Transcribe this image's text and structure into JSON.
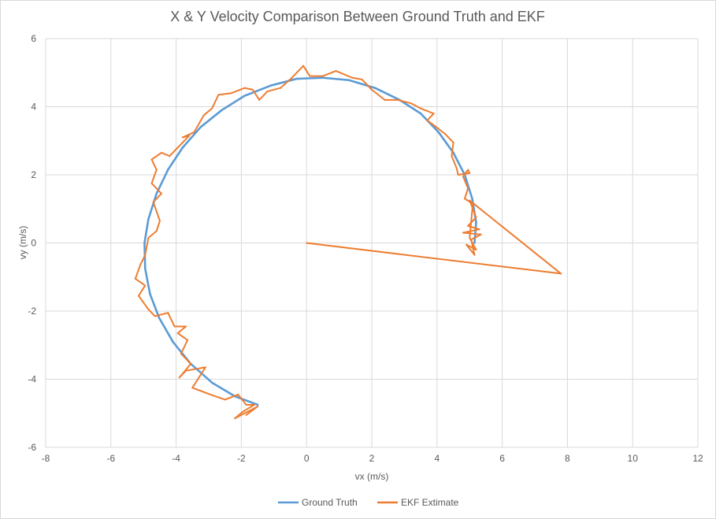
{
  "chart_data": {
    "type": "scatter",
    "title": "X & Y Velocity Comparison Between Ground Truth and EKF",
    "xlabel": "vx (m/s)",
    "ylabel": "vy (m/s)",
    "xlim": [
      -8,
      12
    ],
    "ylim": [
      -6,
      6
    ],
    "x_ticks": [
      "-8",
      "-6",
      "-4",
      "-2",
      "0",
      "2",
      "4",
      "6",
      "8",
      "10",
      "12"
    ],
    "y_ticks": [
      "6",
      "4",
      "2",
      "0",
      "-2",
      "-4",
      "-6"
    ],
    "grid": true,
    "legend_position": "bottom",
    "series": [
      {
        "name": "Ground Truth",
        "color": "#5b9bd5",
        "points": [
          [
            5.15,
            0.0
          ],
          [
            5.2,
            0.6
          ],
          [
            5.08,
            1.3
          ],
          [
            4.85,
            2.0
          ],
          [
            4.5,
            2.65
          ],
          [
            4.05,
            3.25
          ],
          [
            3.5,
            3.8
          ],
          [
            2.85,
            4.2
          ],
          [
            2.1,
            4.55
          ],
          [
            1.3,
            4.78
          ],
          [
            0.5,
            4.85
          ],
          [
            -0.3,
            4.82
          ],
          [
            -1.1,
            4.62
          ],
          [
            -1.9,
            4.32
          ],
          [
            -2.6,
            3.9
          ],
          [
            -3.25,
            3.4
          ],
          [
            -3.8,
            2.8
          ],
          [
            -4.25,
            2.15
          ],
          [
            -4.6,
            1.45
          ],
          [
            -4.85,
            0.7
          ],
          [
            -4.97,
            0.0
          ],
          [
            -4.95,
            -0.75
          ],
          [
            -4.8,
            -1.5
          ],
          [
            -4.52,
            -2.2
          ],
          [
            -4.1,
            -2.9
          ],
          [
            -3.55,
            -3.55
          ],
          [
            -2.9,
            -4.1
          ],
          [
            -2.2,
            -4.5
          ],
          [
            -1.5,
            -4.75
          ]
        ]
      },
      {
        "name": "EKF Extimate",
        "color": "#ed7d31",
        "points": [
          [
            0.0,
            0.0
          ],
          [
            7.8,
            -0.9
          ],
          [
            5.0,
            1.25
          ],
          [
            5.2,
            0.75
          ],
          [
            4.95,
            0.5
          ],
          [
            5.3,
            0.4
          ],
          [
            4.8,
            0.3
          ],
          [
            5.35,
            0.25
          ],
          [
            5.05,
            0.1
          ],
          [
            5.15,
            -0.35
          ],
          [
            4.9,
            -0.05
          ],
          [
            5.2,
            -0.2
          ],
          [
            5.0,
            0.15
          ],
          [
            5.1,
            1.15
          ],
          [
            4.85,
            1.3
          ],
          [
            4.95,
            1.6
          ],
          [
            4.8,
            1.95
          ],
          [
            4.95,
            2.15
          ],
          [
            5.0,
            2.05
          ],
          [
            4.65,
            2.0
          ],
          [
            4.6,
            2.2
          ],
          [
            4.45,
            2.55
          ],
          [
            4.5,
            2.95
          ],
          [
            4.25,
            3.2
          ],
          [
            4.05,
            3.35
          ],
          [
            3.7,
            3.6
          ],
          [
            3.9,
            3.8
          ],
          [
            3.5,
            3.95
          ],
          [
            3.2,
            4.1
          ],
          [
            2.8,
            4.2
          ],
          [
            2.4,
            4.2
          ],
          [
            2.0,
            4.5
          ],
          [
            1.7,
            4.8
          ],
          [
            1.4,
            4.85
          ],
          [
            0.9,
            5.05
          ],
          [
            0.5,
            4.9
          ],
          [
            0.1,
            4.9
          ],
          [
            -0.1,
            5.2
          ],
          [
            -0.45,
            4.85
          ],
          [
            -0.8,
            4.55
          ],
          [
            -1.2,
            4.45
          ],
          [
            -1.45,
            4.2
          ],
          [
            -1.65,
            4.5
          ],
          [
            -1.9,
            4.55
          ],
          [
            -2.3,
            4.4
          ],
          [
            -2.7,
            4.35
          ],
          [
            -2.9,
            3.95
          ],
          [
            -3.15,
            3.75
          ],
          [
            -3.45,
            3.25
          ],
          [
            -3.8,
            3.1
          ],
          [
            -3.6,
            3.15
          ],
          [
            -4.0,
            2.75
          ],
          [
            -4.2,
            2.55
          ],
          [
            -4.45,
            2.65
          ],
          [
            -4.75,
            2.45
          ],
          [
            -4.6,
            2.15
          ],
          [
            -4.75,
            1.75
          ],
          [
            -4.45,
            1.45
          ],
          [
            -4.7,
            1.2
          ],
          [
            -4.5,
            0.65
          ],
          [
            -4.6,
            0.35
          ],
          [
            -4.85,
            0.15
          ],
          [
            -4.95,
            -0.35
          ],
          [
            -5.1,
            -0.65
          ],
          [
            -5.25,
            -1.05
          ],
          [
            -4.95,
            -1.25
          ],
          [
            -5.15,
            -1.55
          ],
          [
            -4.85,
            -1.95
          ],
          [
            -4.65,
            -2.15
          ],
          [
            -4.25,
            -2.05
          ],
          [
            -4.05,
            -2.45
          ],
          [
            -3.7,
            -2.45
          ],
          [
            -3.95,
            -2.65
          ],
          [
            -3.65,
            -2.85
          ],
          [
            -3.85,
            -3.25
          ],
          [
            -3.55,
            -3.55
          ],
          [
            -3.9,
            -3.95
          ],
          [
            -3.7,
            -3.75
          ],
          [
            -3.1,
            -3.65
          ],
          [
            -3.5,
            -4.25
          ],
          [
            -2.95,
            -4.45
          ],
          [
            -2.5,
            -4.6
          ],
          [
            -2.1,
            -4.45
          ],
          [
            -1.85,
            -4.75
          ],
          [
            -1.6,
            -4.75
          ],
          [
            -1.95,
            -4.95
          ],
          [
            -2.2,
            -5.15
          ],
          [
            -1.8,
            -4.95
          ],
          [
            -1.5,
            -4.8
          ],
          [
            -1.85,
            -5.05
          ]
        ]
      }
    ]
  }
}
